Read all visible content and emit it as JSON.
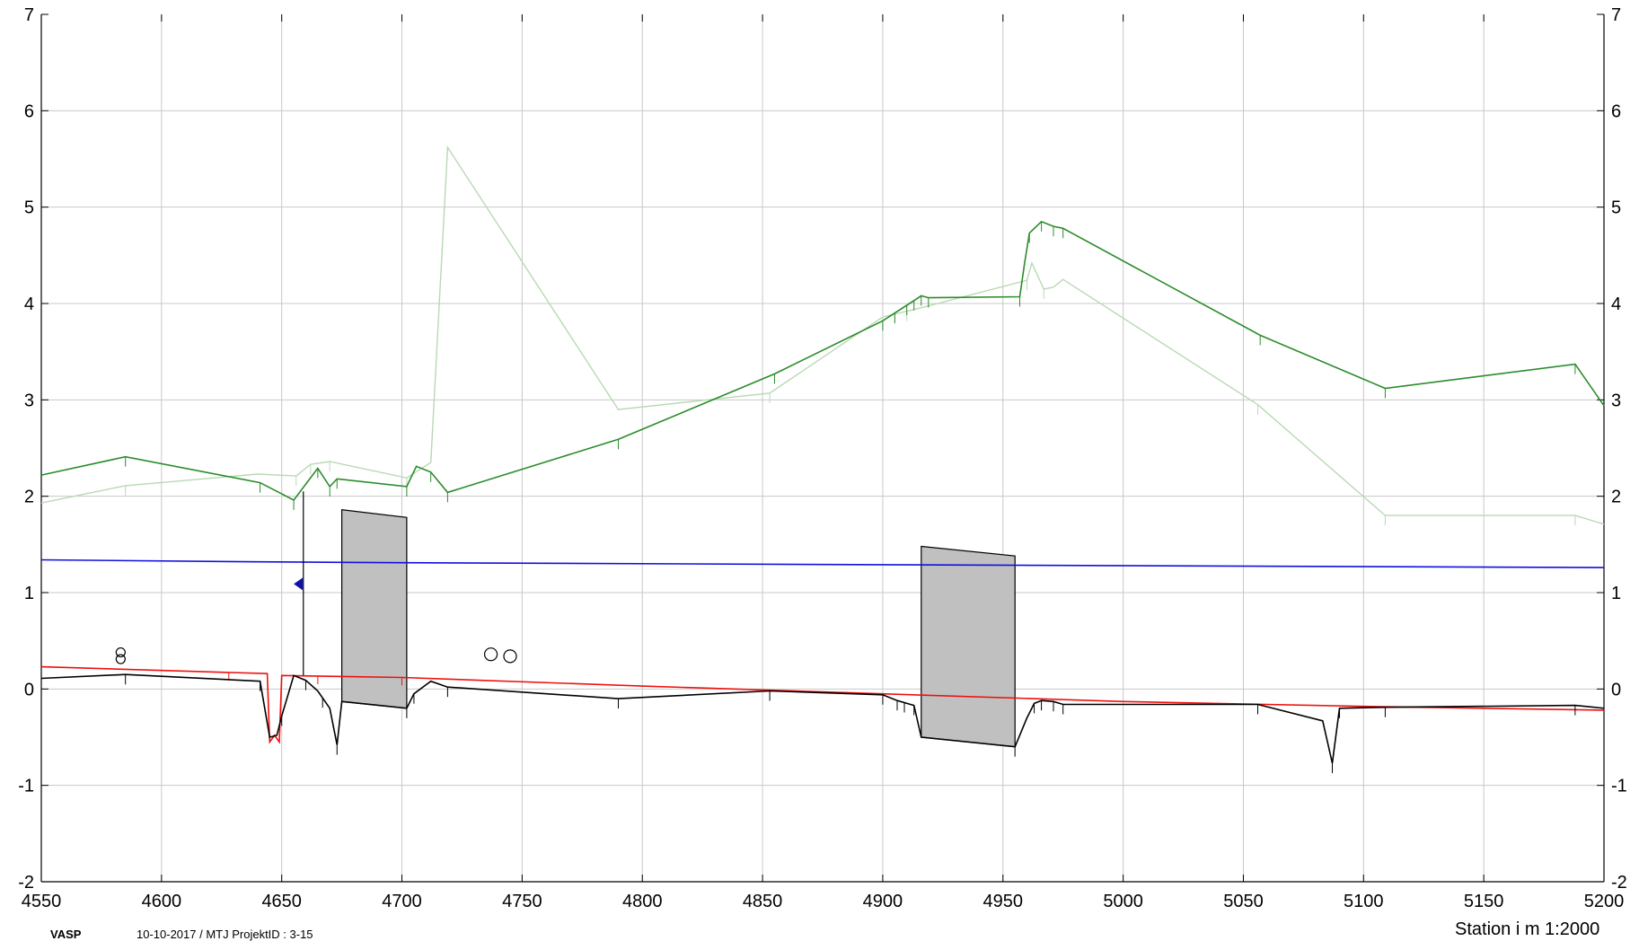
{
  "footer": {
    "left": "VASP",
    "middle": "10-10-2017 / MTJ   ProjektID : 3-15",
    "right": "Station i m  1:2000"
  },
  "colors": {
    "terrain": "#2a8c2a",
    "terrain_old": "#b9d9b4",
    "water": "#1010dd",
    "red_line": "#ee1010",
    "bottom": "#000000",
    "box_fill": "#c0c0c0",
    "marker": "#1010aa",
    "grid": "#c8c8c8"
  },
  "chart_data": {
    "type": "line",
    "title": "",
    "xlabel": "Station i m  1:2000",
    "ylabel": "",
    "xlim": [
      4550,
      5200
    ],
    "ylim": [
      -2,
      7
    ],
    "grid": true,
    "x_ticks": [
      "4550",
      "4600",
      "4650",
      "4700",
      "4750",
      "4800",
      "4850",
      "4900",
      "4950",
      "5000",
      "5050",
      "5100",
      "5150",
      "5200"
    ],
    "y_ticks": [
      "-2",
      "-1",
      "0",
      "1",
      "2",
      "3",
      "4",
      "5",
      "6",
      "7"
    ],
    "series": [
      {
        "key": "terrain",
        "color": "#2a8c2a",
        "points": [
          [
            4550,
            2.22
          ],
          [
            4585,
            2.41
          ],
          [
            4641,
            2.14
          ],
          [
            4655,
            1.96
          ],
          [
            4665,
            2.29
          ],
          [
            4670,
            2.1
          ],
          [
            4673,
            2.18
          ],
          [
            4702,
            2.1
          ],
          [
            4706,
            2.31
          ],
          [
            4712,
            2.25
          ],
          [
            4719,
            2.04
          ],
          [
            4790,
            2.59
          ],
          [
            4855,
            3.27
          ],
          [
            4900,
            3.82
          ],
          [
            4913,
            4.03
          ],
          [
            4916,
            4.08
          ],
          [
            4919,
            4.06
          ],
          [
            4957,
            4.07
          ],
          [
            4959,
            4.42
          ],
          [
            4961,
            4.73
          ],
          [
            4966,
            4.85
          ],
          [
            4971,
            4.8
          ],
          [
            4975,
            4.78
          ],
          [
            5057,
            3.67
          ],
          [
            5109,
            3.12
          ],
          [
            5188,
            3.37
          ],
          [
            5200,
            2.94
          ]
        ]
      },
      {
        "key": "terrain_old",
        "color": "#b9d9b4",
        "points": [
          [
            4550,
            1.93
          ],
          [
            4585,
            2.11
          ],
          [
            4640,
            2.23
          ],
          [
            4656,
            2.21
          ],
          [
            4662,
            2.33
          ],
          [
            4670,
            2.36
          ],
          [
            4702,
            2.19
          ],
          [
            4712,
            2.35
          ],
          [
            4719,
            5.62
          ],
          [
            4790,
            2.9
          ],
          [
            4853,
            3.07
          ],
          [
            4900,
            3.86
          ],
          [
            4915,
            3.95
          ],
          [
            4960,
            4.24
          ],
          [
            4962,
            4.42
          ],
          [
            4967,
            4.15
          ],
          [
            4971,
            4.17
          ],
          [
            4975,
            4.25
          ],
          [
            5056,
            2.95
          ],
          [
            5109,
            1.8
          ],
          [
            5188,
            1.8
          ],
          [
            5200,
            1.71
          ]
        ]
      },
      {
        "key": "water",
        "color": "#1010dd",
        "points": [
          [
            4550,
            1.34
          ],
          [
            4640,
            1.32
          ],
          [
            4700,
            1.31
          ],
          [
            4900,
            1.29
          ],
          [
            5200,
            1.26
          ]
        ]
      },
      {
        "key": "red_line",
        "color": "#ee1010",
        "points": [
          [
            4550,
            0.23
          ],
          [
            4644,
            0.16
          ],
          [
            4645,
            -0.55
          ],
          [
            4647,
            -0.48
          ],
          [
            4649,
            -0.55
          ],
          [
            4650,
            0.14
          ],
          [
            4700,
            0.12
          ],
          [
            4800,
            0.03
          ],
          [
            5000,
            -0.13
          ],
          [
            5100,
            -0.18
          ],
          [
            5200,
            -0.22
          ]
        ]
      },
      {
        "key": "bottom",
        "color": "#000000",
        "points": [
          [
            4550,
            0.11
          ],
          [
            4585,
            0.15
          ],
          [
            4641,
            0.08
          ],
          [
            4645,
            -0.5
          ],
          [
            4648,
            -0.48
          ],
          [
            4650,
            -0.28
          ],
          [
            4655,
            0.14
          ],
          [
            4660,
            0.09
          ],
          [
            4665,
            -0.02
          ],
          [
            4670,
            -0.2
          ],
          [
            4673,
            -0.58
          ],
          [
            4675,
            -0.13
          ],
          [
            4702,
            -0.2
          ],
          [
            4705,
            -0.05
          ],
          [
            4712,
            0.08
          ],
          [
            4719,
            0.02
          ],
          [
            4790,
            -0.1
          ],
          [
            4853,
            -0.02
          ],
          [
            4900,
            -0.06
          ],
          [
            4906,
            -0.12
          ],
          [
            4913,
            -0.17
          ],
          [
            4916,
            -0.5
          ],
          [
            4955,
            -0.6
          ],
          [
            4960,
            -0.3
          ],
          [
            4963,
            -0.15
          ],
          [
            4966,
            -0.12
          ],
          [
            4971,
            -0.13
          ],
          [
            4975,
            -0.16
          ],
          [
            5056,
            -0.16
          ],
          [
            5083,
            -0.33
          ],
          [
            5087,
            -0.77
          ],
          [
            5090,
            -0.2
          ],
          [
            5109,
            -0.19
          ],
          [
            5188,
            -0.17
          ],
          [
            5200,
            -0.2
          ]
        ]
      }
    ],
    "boxes": [
      {
        "x1": 4675,
        "x2": 4702,
        "top1": 1.86,
        "top2": 1.78,
        "bot1": -0.13,
        "bot2": -0.2
      },
      {
        "x1": 4916,
        "x2": 4955,
        "top1": 1.48,
        "top2": 1.38,
        "bot1": -0.5,
        "bot2": -0.6
      }
    ],
    "vertical_line": {
      "x": 4659,
      "y1": 2.05,
      "y2": 0.14
    },
    "marker": {
      "x": 4658,
      "y": 1.09
    },
    "circles": [
      [
        4583,
        0.38
      ],
      [
        4583,
        0.31
      ],
      [
        4737,
        0.36
      ],
      [
        4745,
        0.34
      ]
    ],
    "terrain_ticks": [
      4585,
      4641,
      4655,
      4665,
      4670,
      4673,
      4702,
      4712,
      4719,
      4790,
      4855,
      4900,
      4905,
      4910,
      4913,
      4916,
      4919,
      4957,
      4961,
      4966,
      4971,
      4975,
      5057,
      5109,
      5188
    ],
    "terrain_old_ticks": [
      4585,
      4656,
      4662,
      4670,
      4702,
      4853,
      4900,
      4905,
      4910,
      4960,
      4967,
      5056,
      5109,
      5188
    ],
    "bottom_ticks": [
      4585,
      4641,
      4650,
      4660,
      4667,
      4673,
      4702,
      4705,
      4719,
      4790,
      4853,
      4900,
      4906,
      4909,
      4913,
      4955,
      4963,
      4966,
      4971,
      4975,
      5056,
      5087,
      5090,
      5109,
      5188
    ],
    "red_ticks": [
      4628,
      4665,
      4700
    ]
  }
}
